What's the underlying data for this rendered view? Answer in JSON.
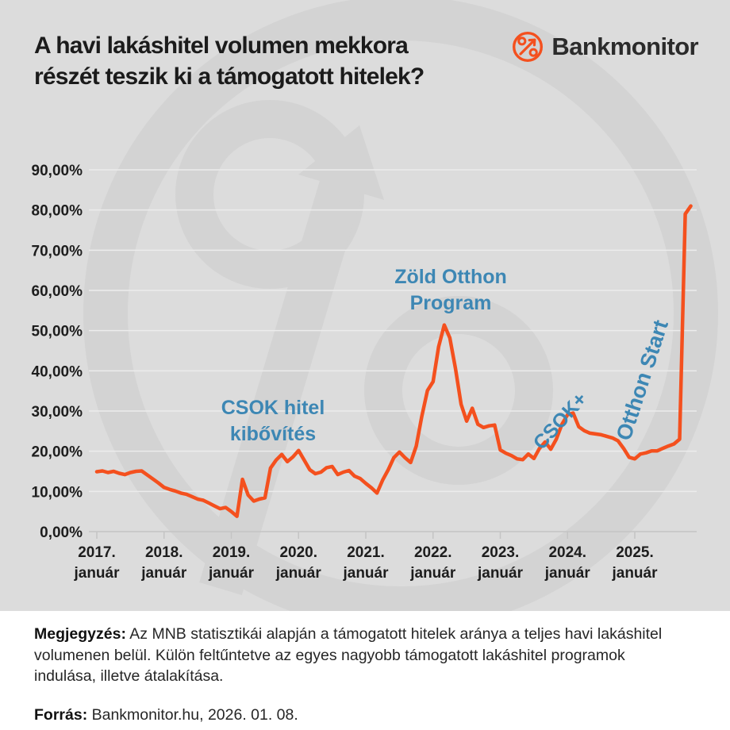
{
  "header": {
    "title_line1": "A havi lakáshitel volumen mekkora",
    "title_line2": "részét teszik ki a támogatott hitelek?",
    "brand_name": "Bankmonitor",
    "brand_icon": "percent-arrow-icon",
    "brand_color": "#f4501e"
  },
  "chart_data": {
    "type": "line",
    "title": "A havi lakáshitel volumen mekkora részét teszik ki a támogatott hitelek?",
    "grid": true,
    "legend": "none",
    "line_color": "#f4501e",
    "annotation_color": "#3d87b4",
    "ylim": [
      0,
      90
    ],
    "y_tick_step": 10,
    "y_tick_labels": [
      "0,00%",
      "10,00%",
      "20,00%",
      "30,00%",
      "40,00%",
      "50,00%",
      "60,00%",
      "70,00%",
      "80,00%",
      "90,00%"
    ],
    "x_ticks": [
      {
        "year": "2017.",
        "month": "január"
      },
      {
        "year": "2018.",
        "month": "január"
      },
      {
        "year": "2019.",
        "month": "január"
      },
      {
        "year": "2020.",
        "month": "január"
      },
      {
        "year": "2021.",
        "month": "január"
      },
      {
        "year": "2022.",
        "month": "január"
      },
      {
        "year": "2023.",
        "month": "január"
      },
      {
        "year": "2024.",
        "month": "január"
      },
      {
        "year": "2025.",
        "month": "január"
      }
    ],
    "x_months": {
      "start": "2017. január",
      "end": "2025. november",
      "count": 107
    },
    "monthly_values": [
      14.9,
      15.1,
      14.7,
      15.0,
      14.5,
      14.2,
      14.7,
      15.0,
      15.1,
      14.1,
      13.1,
      12.1,
      11.0,
      10.5,
      10.1,
      9.6,
      9.3,
      8.7,
      8.1,
      7.8,
      7.1,
      6.4,
      5.7,
      6.0,
      5.0,
      3.8,
      13.0,
      9.1,
      7.6,
      8.1,
      8.4,
      15.8,
      17.8,
      19.2,
      17.4,
      18.6,
      20.2,
      17.8,
      15.4,
      14.4,
      14.8,
      15.9,
      16.2,
      14.2,
      14.8,
      15.2,
      13.8,
      13.2,
      12.0,
      10.9,
      9.6,
      12.8,
      15.4,
      18.4,
      19.8,
      18.4,
      17.2,
      21.3,
      28.7,
      35.1,
      37.3,
      46.0,
      51.4,
      48.2,
      40.6,
      31.7,
      27.5,
      30.7,
      26.7,
      25.9,
      26.3,
      26.5,
      20.3,
      19.5,
      18.9,
      18.1,
      17.9,
      19.3,
      18.2,
      20.7,
      22.3,
      20.5,
      23.0,
      26.7,
      29.1,
      29.5,
      26.1,
      25.1,
      24.5,
      24.3,
      24.1,
      23.7,
      23.3,
      22.6,
      20.7,
      18.5,
      18.1,
      19.3,
      19.6,
      20.1,
      20.1,
      20.7,
      21.3,
      21.8,
      23.0,
      79.0,
      81.0
    ],
    "annotations": [
      {
        "lines": [
          "CSOK hitel",
          "kibővítés"
        ],
        "points_to": "2019 line jump"
      },
      {
        "lines": [
          "Zöld Otthon",
          "Program"
        ],
        "points_to": "2022 peak 51%"
      },
      {
        "lines": [
          "CSOK+"
        ],
        "points_to": "2024 local peak 29%"
      },
      {
        "lines": [
          "Otthon Start"
        ],
        "points_to": "2025 spike 81%"
      }
    ]
  },
  "note": {
    "label": "Megjegyzés:",
    "text": " Az MNB statisztikái alapján a támogatott hitelek aránya a teljes havi lakáshitel volumenen belül. Külön feltűntetve az egyes nagyobb támogatott lakáshitel programok indulása, illetve átalakítása."
  },
  "source": {
    "label": "Forrás:",
    "text": " Bankmonitor.hu, 2026. 01. 08."
  }
}
